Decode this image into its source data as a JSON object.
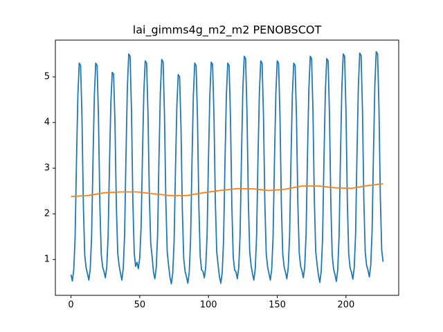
{
  "chart_data": {
    "type": "line",
    "title": "lai_gimms4g_m2_m2 PENOBSCOT",
    "xlim": [
      -11.35,
      238.35
    ],
    "ylim": [
      0.216,
      5.804
    ],
    "xticks": [
      0,
      50,
      100,
      150,
      200
    ],
    "yticks": [
      1,
      2,
      3,
      4,
      5
    ],
    "series": [
      {
        "color": "#1f77b4",
        "x": [
          0,
          1,
          2,
          3,
          4,
          5,
          6,
          7,
          8,
          9,
          10,
          11,
          12,
          13,
          14,
          15,
          16,
          17,
          18,
          19,
          20,
          21,
          22,
          23,
          24,
          25,
          26,
          27,
          28,
          29,
          30,
          31,
          32,
          33,
          34,
          35,
          36,
          37,
          38,
          39,
          40,
          41,
          42,
          43,
          44,
          45,
          46,
          47,
          48,
          49,
          50,
          51,
          52,
          53,
          54,
          55,
          56,
          57,
          58,
          59,
          60,
          61,
          62,
          63,
          64,
          65,
          66,
          67,
          68,
          69,
          70,
          71,
          72,
          73,
          74,
          75,
          76,
          77,
          78,
          79,
          80,
          81,
          82,
          83,
          84,
          85,
          86,
          87,
          88,
          89,
          90,
          91,
          92,
          93,
          94,
          95,
          96,
          97,
          98,
          99,
          100,
          101,
          102,
          103,
          104,
          105,
          106,
          107,
          108,
          109,
          110,
          111,
          112,
          113,
          114,
          115,
          116,
          117,
          118,
          119,
          120,
          121,
          122,
          123,
          124,
          125,
          126,
          127,
          128,
          129,
          130,
          131,
          132,
          133,
          134,
          135,
          136,
          137,
          138,
          139,
          140,
          141,
          142,
          143,
          144,
          145,
          146,
          147,
          148,
          149,
          150,
          151,
          152,
          153,
          154,
          155,
          156,
          157,
          158,
          159,
          160,
          161,
          162,
          163,
          164,
          165,
          166,
          167,
          168,
          169,
          170,
          171,
          172,
          173,
          174,
          175,
          176,
          177,
          178,
          179,
          180,
          181,
          182,
          183,
          184,
          185,
          186,
          187,
          188,
          189,
          190,
          191,
          192,
          193,
          194,
          195,
          196,
          197,
          198,
          199,
          200,
          201,
          202,
          203,
          204,
          205,
          206,
          207,
          208,
          209,
          210,
          211,
          212,
          213,
          214,
          215,
          216,
          217,
          218,
          219,
          220,
          221,
          222,
          223,
          224,
          225,
          226,
          227
        ],
        "values": [
          0.67,
          0.53,
          0.77,
          1.48,
          3.15,
          4.58,
          5.3,
          5.25,
          4.11,
          2.2,
          1.1,
          0.82,
          0.69,
          0.55,
          0.79,
          1.5,
          3.16,
          4.59,
          5.3,
          5.25,
          4.11,
          2.21,
          1.12,
          0.84,
          0.74,
          0.6,
          0.83,
          1.5,
          3.08,
          4.43,
          5.1,
          5.06,
          3.98,
          2.18,
          1.14,
          0.87,
          0.7,
          0.55,
          0.8,
          1.54,
          3.27,
          4.76,
          5.5,
          5.45,
          4.26,
          2.28,
          1.14,
          0.85,
          0.94,
          0.8,
          1.03,
          1.71,
          3.3,
          4.67,
          5.35,
          5.3,
          4.21,
          2.39,
          1.35,
          1.07,
          0.72,
          0.58,
          0.82,
          1.54,
          3.22,
          4.66,
          5.38,
          5.33,
          4.18,
          2.26,
          1.16,
          0.87,
          0.61,
          0.47,
          0.7,
          1.39,
          2.99,
          4.36,
          5.05,
          5.0,
          3.91,
          2.07,
          1.02,
          0.74,
          0.62,
          0.48,
          0.72,
          1.44,
          3.13,
          4.58,
          5.3,
          5.25,
          4.1,
          2.17,
          1.06,
          0.77,
          0.74,
          0.6,
          0.84,
          1.54,
          3.2,
          4.61,
          5.32,
          5.27,
          4.14,
          2.25,
          1.17,
          0.88,
          0.62,
          0.48,
          0.72,
          1.44,
          3.13,
          4.58,
          5.3,
          5.25,
          4.1,
          2.17,
          1.06,
          0.77,
          0.73,
          0.58,
          0.82,
          1.55,
          3.26,
          4.72,
          5.45,
          5.4,
          4.23,
          2.28,
          1.16,
          0.87,
          0.69,
          0.55,
          0.79,
          1.51,
          3.19,
          4.63,
          5.35,
          5.3,
          4.15,
          2.23,
          1.13,
          0.84,
          0.69,
          0.55,
          0.79,
          1.51,
          3.19,
          4.63,
          5.35,
          5.3,
          4.15,
          2.23,
          1.13,
          0.84,
          0.72,
          0.58,
          0.82,
          1.52,
          3.18,
          4.59,
          5.3,
          5.25,
          4.12,
          2.23,
          1.15,
          0.86,
          0.75,
          0.6,
          0.84,
          1.57,
          3.27,
          4.72,
          5.45,
          5.4,
          4.24,
          2.3,
          1.18,
          0.89,
          0.65,
          0.5,
          0.75,
          1.48,
          3.2,
          4.67,
          5.4,
          5.35,
          4.18,
          2.22,
          1.09,
          0.79,
          0.67,
          0.52,
          0.77,
          1.52,
          3.26,
          4.75,
          5.5,
          5.45,
          4.26,
          2.26,
          1.12,
          0.82,
          0.72,
          0.57,
          0.82,
          1.56,
          3.29,
          4.78,
          5.52,
          5.47,
          4.28,
          2.3,
          1.16,
          0.87,
          0.77,
          0.62,
          0.87,
          1.61,
          3.33,
          4.81,
          5.55,
          5.5,
          4.32,
          2.35,
          1.2,
          0.95
        ]
      },
      {
        "color": "#ff7f0e",
        "x": [
          0,
          12,
          24,
          36,
          48,
          60,
          72,
          84,
          96,
          108,
          120,
          132,
          144,
          156,
          168,
          180,
          192,
          204,
          216,
          227
        ],
        "values": [
          2.38,
          2.4,
          2.46,
          2.48,
          2.48,
          2.44,
          2.4,
          2.4,
          2.46,
          2.51,
          2.55,
          2.55,
          2.51,
          2.54,
          2.61,
          2.61,
          2.57,
          2.56,
          2.62,
          2.66
        ]
      }
    ]
  }
}
